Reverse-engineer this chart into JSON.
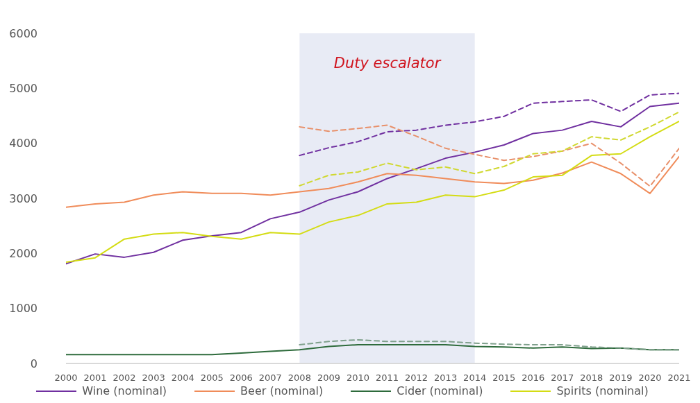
{
  "chart_data": {
    "type": "line",
    "x": [
      2000,
      2001,
      2002,
      2003,
      2004,
      2005,
      2006,
      2007,
      2008,
      2009,
      2010,
      2011,
      2012,
      2013,
      2014,
      2015,
      2016,
      2017,
      2018,
      2019,
      2020,
      2021
    ],
    "series": [
      {
        "name": "Wine (nominal)",
        "color": "#7030a0",
        "values": [
          1810,
          1990,
          1930,
          2020,
          2240,
          2320,
          2380,
          2630,
          2750,
          2970,
          3120,
          3360,
          3540,
          3730,
          3840,
          3970,
          4180,
          4240,
          4400,
          4300,
          4670,
          4730
        ]
      },
      {
        "name": "Beer (nominal)",
        "color": "#f08c5a",
        "values": [
          2840,
          2900,
          2930,
          3060,
          3120,
          3090,
          3090,
          3060,
          3120,
          3180,
          3300,
          3450,
          3420,
          3360,
          3300,
          3270,
          3330,
          3460,
          3660,
          3450,
          3090,
          3760
        ]
      },
      {
        "name": "Cider (nominal)",
        "color": "#2e6b3c",
        "values": [
          160,
          160,
          160,
          160,
          160,
          160,
          190,
          220,
          250,
          310,
          340,
          340,
          340,
          340,
          310,
          300,
          280,
          300,
          270,
          280,
          250,
          250
        ]
      },
      {
        "name": "Spirits (nominal)",
        "color": "#d4dc14",
        "values": [
          1840,
          1920,
          2260,
          2350,
          2380,
          2310,
          2260,
          2380,
          2350,
          2570,
          2690,
          2900,
          2930,
          3060,
          3030,
          3150,
          3390,
          3420,
          3780,
          3810,
          4120,
          4400
        ]
      },
      {
        "color": "#7030a0",
        "line_style": "dashed",
        "x": [
          2008,
          2009,
          2010,
          2011,
          2012,
          2013,
          2014,
          2015,
          2016,
          2017,
          2018,
          2019,
          2020,
          2021
        ],
        "values": [
          3780,
          3920,
          4030,
          4210,
          4240,
          4330,
          4390,
          4490,
          4730,
          4760,
          4790,
          4580,
          4880,
          4910
        ]
      },
      {
        "color": "#e8906a",
        "line_style": "dashed",
        "x": [
          2008,
          2009,
          2010,
          2011,
          2012,
          2013,
          2014,
          2015,
          2016,
          2017,
          2018,
          2019,
          2020,
          2021
        ],
        "values": [
          4300,
          4220,
          4270,
          4330,
          4130,
          3910,
          3800,
          3690,
          3760,
          3860,
          4000,
          3640,
          3220,
          3910
        ]
      },
      {
        "color": "#7fa08c",
        "line_style": "dashed",
        "x": [
          2008,
          2009,
          2010,
          2011,
          2012,
          2013,
          2014,
          2015,
          2016,
          2017,
          2018,
          2019,
          2020,
          2021
        ],
        "values": [
          340,
          400,
          430,
          400,
          400,
          400,
          370,
          350,
          340,
          340,
          300,
          280,
          250,
          250
        ]
      },
      {
        "color": "#d0d830",
        "line_style": "dashed",
        "x": [
          2008,
          2009,
          2010,
          2011,
          2012,
          2013,
          2014,
          2015,
          2016,
          2017,
          2018,
          2019,
          2020,
          2021
        ],
        "values": [
          3230,
          3420,
          3480,
          3640,
          3520,
          3570,
          3450,
          3580,
          3810,
          3860,
          4120,
          4060,
          4300,
          4570
        ]
      }
    ],
    "xlim": [
      2000,
      2021
    ],
    "xticks": [
      2000,
      2001,
      2002,
      2003,
      2004,
      2005,
      2006,
      2007,
      2008,
      2009,
      2010,
      2011,
      2012,
      2013,
      2014,
      2015,
      2016,
      2017,
      2018,
      2019,
      2020,
      2021
    ],
    "ylim": [
      0,
      6000
    ],
    "yticks": [
      0,
      1000,
      2000,
      3000,
      4000,
      5000,
      6000
    ],
    "bands": [
      {
        "axis": "x",
        "from": 2008,
        "to": 2014,
        "label": "Duty escalator",
        "color": "#e8ebf5"
      }
    ],
    "grid": false,
    "legend": "bottom",
    "marker": "none",
    "line_style": "solid"
  }
}
